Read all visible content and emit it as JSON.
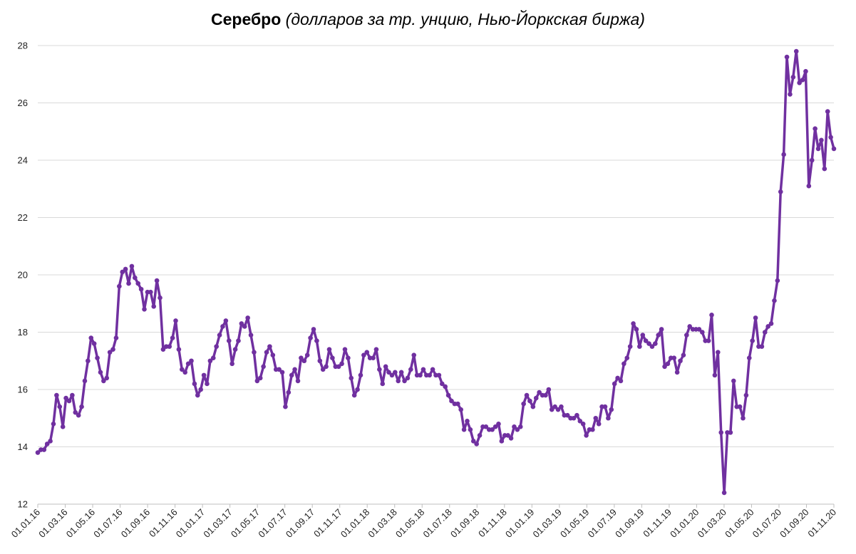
{
  "chart_data": {
    "type": "line",
    "title": "Серебро",
    "subtitle": "(долларов за тр. унцию, Нью-Йоркская биржа)",
    "xlabel": "",
    "ylabel": "",
    "ylim": [
      12,
      28
    ],
    "yticks": [
      "12",
      "14",
      "16",
      "18",
      "20",
      "22",
      "24",
      "26",
      "28"
    ],
    "xtick_labels": [
      "01.01.16",
      "01.03.16",
      "01.05.16",
      "01.07.16",
      "01.09.16",
      "01.11.16",
      "01.01.17",
      "01.03.17",
      "01.05.17",
      "01.07.17",
      "01.09.17",
      "01.11.17",
      "01.01.18",
      "01.03.18",
      "01.05.18",
      "01.07.18",
      "01.09.18",
      "01.11.18",
      "01.01.19",
      "01.03.19",
      "01.05.19",
      "01.07.19",
      "01.09.19",
      "01.11.19",
      "01.01.20",
      "01.03.20",
      "01.05.20",
      "01.07.20",
      "01.09.20",
      "01.11.20"
    ],
    "grid": true,
    "legend": "none",
    "color": "#7030a0",
    "series": [
      {
        "values": [
          13.8,
          13.9,
          13.9,
          14.1,
          14.2,
          14.8,
          15.8,
          15.4,
          14.7,
          15.7,
          15.6,
          15.8,
          15.2,
          15.1,
          15.4,
          16.3,
          17.0,
          17.8,
          17.6,
          17.1,
          16.6,
          16.3,
          16.4,
          17.3,
          17.4,
          17.8,
          19.6,
          20.1,
          20.2,
          19.7,
          20.3,
          19.9,
          19.7,
          19.5,
          18.8,
          19.4,
          19.4,
          18.9,
          19.8,
          19.2,
          17.4,
          17.5,
          17.5,
          17.8,
          18.4,
          17.4,
          16.7,
          16.6,
          16.9,
          17.0,
          16.2,
          15.8,
          16.0,
          16.5,
          16.2,
          17.0,
          17.1,
          17.5,
          17.9,
          18.2,
          18.4,
          17.7,
          16.9,
          17.4,
          17.7,
          18.3,
          18.2,
          18.5,
          17.9,
          17.3,
          16.3,
          16.4,
          16.8,
          17.3,
          17.5,
          17.2,
          16.7,
          16.7,
          16.6,
          15.4,
          15.9,
          16.5,
          16.7,
          16.3,
          17.1,
          17.0,
          17.2,
          17.8,
          18.1,
          17.7,
          17.0,
          16.7,
          16.8,
          17.4,
          17.1,
          16.8,
          16.8,
          16.9,
          17.4,
          17.1,
          16.4,
          15.8,
          16.0,
          16.5,
          17.2,
          17.3,
          17.1,
          17.1,
          17.4,
          16.7,
          16.2,
          16.8,
          16.6,
          16.5,
          16.6,
          16.3,
          16.6,
          16.3,
          16.4,
          16.7,
          17.2,
          16.5,
          16.5,
          16.7,
          16.5,
          16.5,
          16.7,
          16.5,
          16.5,
          16.2,
          16.1,
          15.8,
          15.6,
          15.5,
          15.5,
          15.3,
          14.6,
          14.9,
          14.6,
          14.2,
          14.1,
          14.4,
          14.7,
          14.7,
          14.6,
          14.6,
          14.7,
          14.8,
          14.2,
          14.4,
          14.4,
          14.3,
          14.7,
          14.6,
          14.7,
          15.5,
          15.8,
          15.6,
          15.4,
          15.7,
          15.9,
          15.8,
          15.8,
          16.0,
          15.3,
          15.4,
          15.3,
          15.4,
          15.1,
          15.1,
          15.0,
          15.0,
          15.1,
          14.9,
          14.8,
          14.4,
          14.6,
          14.6,
          15.0,
          14.8,
          15.4,
          15.4,
          15.0,
          15.3,
          16.2,
          16.4,
          16.3,
          16.9,
          17.1,
          17.5,
          18.3,
          18.1,
          17.5,
          17.9,
          17.7,
          17.6,
          17.5,
          17.6,
          17.9,
          18.1,
          16.8,
          16.9,
          17.1,
          17.1,
          16.6,
          17.0,
          17.2,
          17.9,
          18.2,
          18.1,
          18.1,
          18.1,
          18.0,
          17.7,
          17.7,
          18.6,
          16.5,
          17.3,
          14.5,
          12.4,
          14.5,
          14.5,
          16.3,
          15.4,
          15.4,
          15.0,
          15.8,
          17.1,
          17.7,
          18.5,
          17.5,
          17.5,
          18.0,
          18.2,
          18.3,
          19.1,
          19.8,
          22.9,
          24.2,
          27.6,
          26.3,
          26.9,
          27.8,
          26.7,
          26.8,
          27.1,
          23.1,
          24.0,
          25.1,
          24.4,
          24.7,
          23.7,
          25.7,
          24.8,
          24.4
        ]
      }
    ]
  }
}
